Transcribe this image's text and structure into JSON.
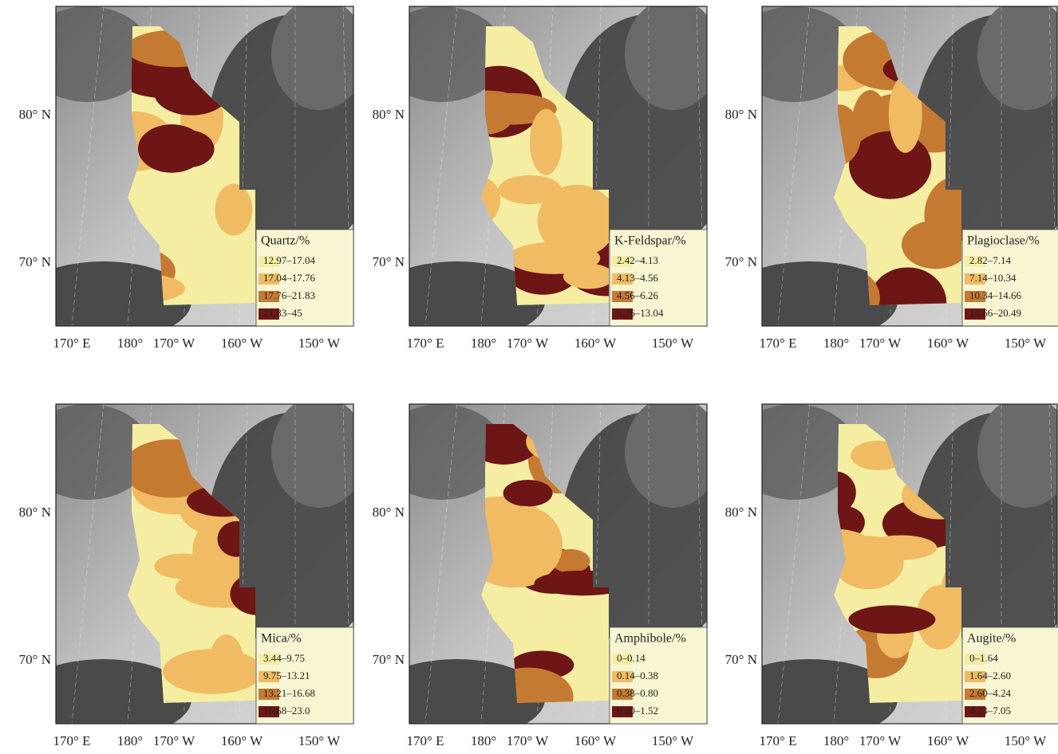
{
  "panels": [
    {
      "legend_title": "Quartz/%",
      "classes": [
        "12.97–17.04",
        "17.04–17.76",
        "17.76–21.83",
        "21.83–45"
      ]
    },
    {
      "legend_title": "K-Feldspar/%",
      "classes": [
        "2.42–4.13",
        "4.13–4.56",
        "4.56–6.26",
        "6.26–13.04"
      ]
    },
    {
      "legend_title": "Plagioclase/%",
      "classes": [
        "2.82–7.14",
        "7.14–10.34",
        "10.34–14.66",
        "14.66–20.49"
      ]
    },
    {
      "legend_title": "Mica/%",
      "classes": [
        "3.44–9.75",
        "9.75–13.21",
        "13.21–16.68",
        "16.68–23.0"
      ]
    },
    {
      "legend_title": "Amphibole/%",
      "classes": [
        "0–0.14",
        "0.14–0.38",
        "0.38–0.80",
        "0.80–1.52"
      ]
    },
    {
      "legend_title": "Augite/%",
      "classes": [
        "0–1.64",
        "1.64–2.60",
        "2.60–4.24",
        "4.24–7.05"
      ]
    }
  ],
  "class_colors": [
    "#f5eea2",
    "#f0bb62",
    "#c57a32",
    "#6e1515"
  ],
  "lat_labels": [
    "80° N",
    "70° N"
  ],
  "lon_labels": [
    "170° E",
    "180°",
    "170° W",
    "160° W",
    "150° W"
  ]
}
